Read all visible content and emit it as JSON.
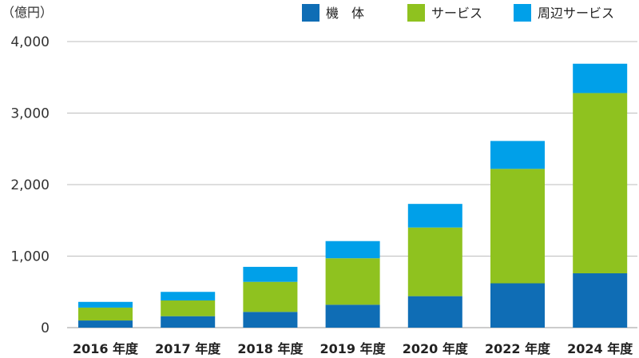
{
  "chart_data": {
    "type": "bar",
    "stacked": true,
    "unit": "（億円）",
    "categories": [
      "2016 年度",
      "2017 年度",
      "2018 年度",
      "2019 年度",
      "2020 年度",
      "2022 年度",
      "2024 年度"
    ],
    "series": [
      {
        "name": "機　体",
        "color": "#0f6db5",
        "values": [
          100,
          160,
          220,
          320,
          440,
          620,
          760
        ]
      },
      {
        "name": "サービス",
        "color": "#8fc21f",
        "values": [
          180,
          220,
          420,
          650,
          960,
          1600,
          2520
        ]
      },
      {
        "name": "周辺サービス",
        "color": "#00a0e9",
        "values": [
          80,
          120,
          210,
          240,
          330,
          390,
          410
        ]
      }
    ],
    "yticks": [
      0,
      1000,
      2000,
      3000,
      4000
    ],
    "ytick_labels": [
      "0",
      "1,000",
      "2,000",
      "3,000",
      "4,000"
    ],
    "ylim": [
      0,
      4000
    ],
    "grid": true,
    "legend": "top-right"
  }
}
